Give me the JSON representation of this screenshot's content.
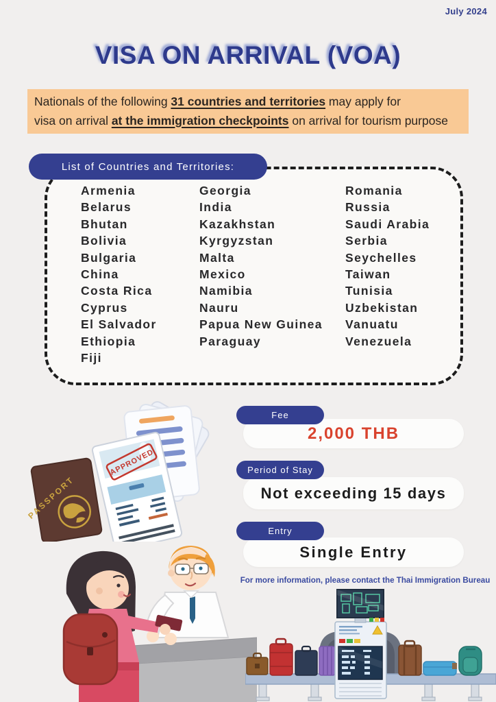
{
  "header": {
    "date": "July 2024",
    "title": "VISA ON ARRIVAL (VOA)"
  },
  "banner": {
    "part1": "Nationals of the following ",
    "part2": "31 countries and territories",
    "part3": " may apply for",
    "part4": "visa on arrival ",
    "part5": "at the immigration checkpoints",
    "part6": " on arrival for tourism purpose"
  },
  "countries": {
    "heading": "List of Countries and Territories:",
    "count": 31,
    "col1": [
      "Armenia",
      "Belarus",
      "Bhutan",
      "Bolivia",
      "Bulgaria",
      "China",
      "Costa Rica",
      "Cyprus",
      "El Salvador",
      "Ethiopia",
      "Fiji"
    ],
    "col2": [
      "Georgia",
      "India",
      "Kazakhstan",
      "Kyrgyzstan",
      "Malta",
      "Mexico",
      "Namibia",
      "Nauru",
      "Papua New Guinea",
      "Paraguay"
    ],
    "col3": [
      "Romania",
      "Russia",
      "Saudi Arabia",
      "Serbia",
      "Seychelles",
      "Taiwan",
      "Tunisia",
      "Uzbekistan",
      "Vanuatu",
      "Venezuela"
    ]
  },
  "details": [
    {
      "label": "Fee",
      "value": "2,000 THB",
      "value_color": "#d9432e"
    },
    {
      "label": "Period of Stay",
      "value": "Not exceeding 15 days",
      "value_color": "#1c1c1c"
    },
    {
      "label": "Entry",
      "value": "Single Entry",
      "value_color": "#1c1c1c"
    }
  ],
  "footer": {
    "note": "For more information, please contact the Thai Immigration Bureau"
  },
  "illustrations": {
    "passport_label": "PASSPORT",
    "stamp_label": "APPROVED",
    "names": [
      "documents-check-illustration",
      "passport-illustration",
      "immigration-counter-illustration",
      "baggage-scanner-illustration"
    ]
  },
  "colors": {
    "page_bg": "#f1efee",
    "navy": "#343f90",
    "title_navy": "#2e3a8c",
    "banner_bg": "#f9c995",
    "fee_red": "#d9432e",
    "dash_border": "#1d1d1d"
  }
}
